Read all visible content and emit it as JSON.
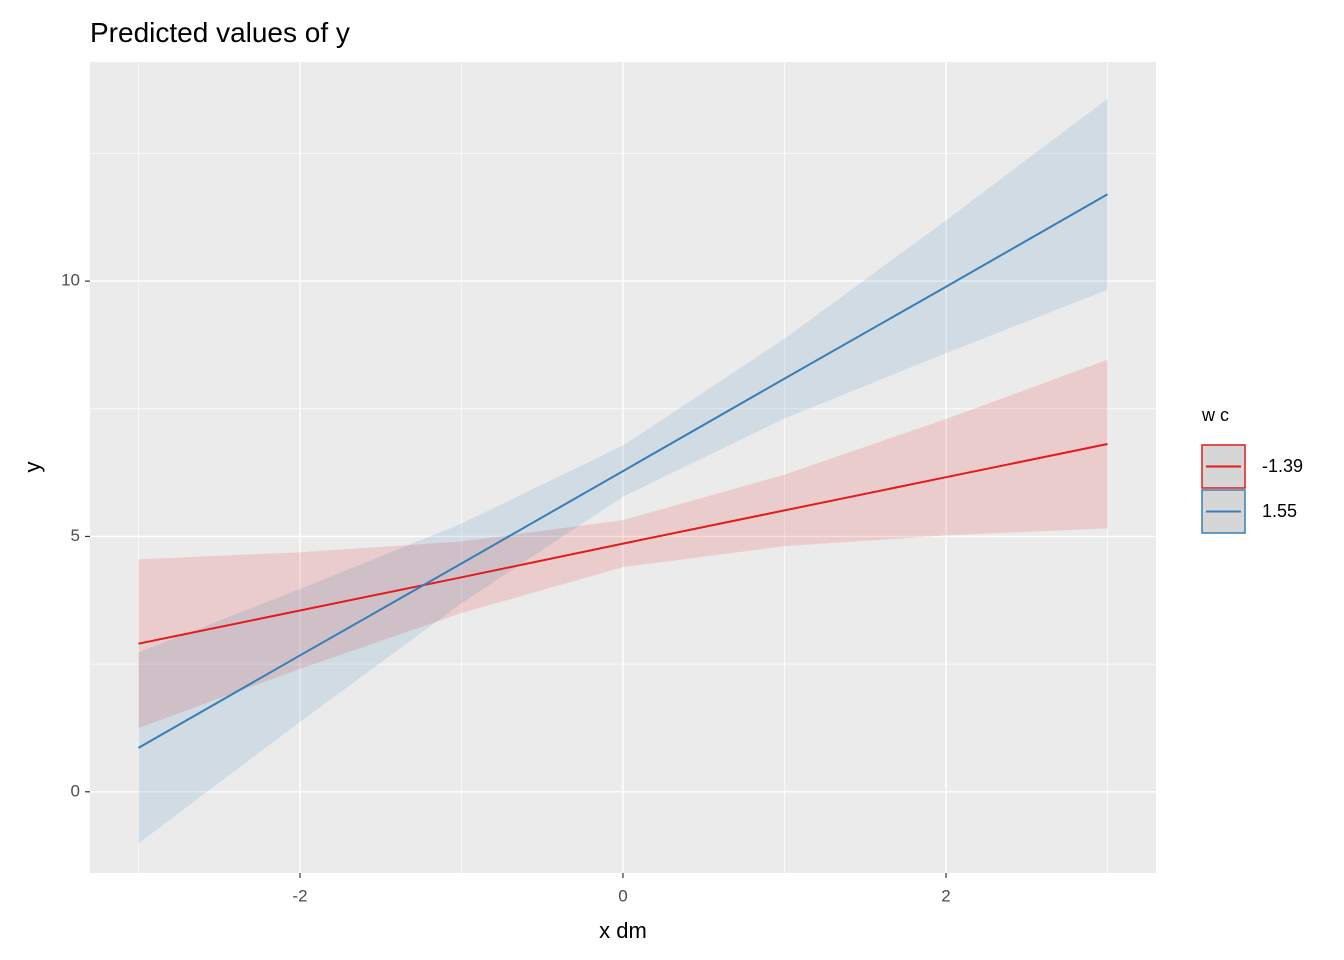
{
  "chart_data": {
    "type": "line",
    "title": "Predicted values of y",
    "x_label": "x dm",
    "y_label": "y",
    "legend_title": "w c",
    "legend_position": "right",
    "grid": true,
    "x": [
      -3,
      -2,
      -1,
      0,
      1,
      2,
      3
    ],
    "xlim": [
      -3.3,
      3.3
    ],
    "xticks": [
      -2,
      0,
      2
    ],
    "ylim": [
      -1.59,
      14.29
    ],
    "yticks": [
      0,
      5,
      10
    ],
    "series": [
      {
        "name": "-1.39",
        "color": "#e41a1c",
        "values": [
          2.9,
          3.55,
          4.2,
          4.86,
          5.51,
          6.16,
          6.81
        ],
        "upper": [
          4.55,
          4.69,
          4.9,
          5.32,
          6.21,
          7.3,
          8.46
        ],
        "lower": [
          1.25,
          2.41,
          3.5,
          4.4,
          4.81,
          5.02,
          5.16
        ]
      },
      {
        "name": "1.55",
        "color": "#377eb8",
        "values": [
          0.86,
          2.67,
          4.47,
          6.28,
          8.09,
          9.89,
          11.7
        ],
        "upper": [
          2.73,
          3.97,
          5.25,
          6.78,
          8.87,
          11.19,
          13.57
        ],
        "lower": [
          -1.01,
          1.37,
          3.69,
          5.78,
          7.31,
          8.59,
          9.83
        ]
      }
    ]
  }
}
